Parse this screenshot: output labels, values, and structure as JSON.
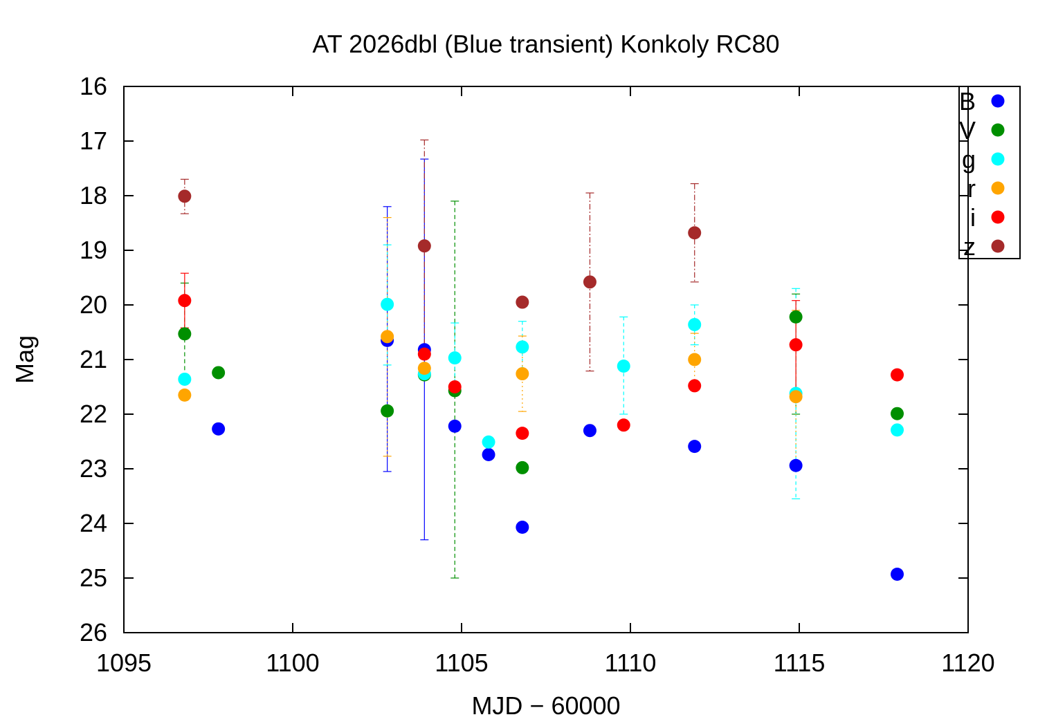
{
  "chart_data": {
    "type": "scatter",
    "title": "AT 2026dbl (Blue transient) Konkoly RC80",
    "xlabel": "MJD − 60000",
    "ylabel": "Mag",
    "xlim": [
      1095,
      1120
    ],
    "ylim": [
      26,
      16
    ],
    "y_inverted": true,
    "grid": false,
    "legend_position": "top-right",
    "xticks": [
      1095,
      1100,
      1105,
      1110,
      1115,
      1120
    ],
    "yticks": [
      16,
      17,
      18,
      19,
      20,
      21,
      22,
      23,
      24,
      25,
      26
    ],
    "series": [
      {
        "name": "B",
        "color": "#0000ff",
        "points": [
          {
            "x": 1097.8,
            "y": 22.27
          },
          {
            "x": 1102.8,
            "y": 20.65,
            "ylow": 18.2,
            "yhigh": 23.05
          },
          {
            "x": 1103.9,
            "y": 20.82,
            "ylow": 17.33,
            "yhigh": 24.3
          },
          {
            "x": 1104.8,
            "y": 22.22
          },
          {
            "x": 1105.8,
            "y": 22.74
          },
          {
            "x": 1106.8,
            "y": 24.07
          },
          {
            "x": 1108.8,
            "y": 22.3
          },
          {
            "x": 1111.9,
            "y": 22.59
          },
          {
            "x": 1114.9,
            "y": 22.94
          },
          {
            "x": 1117.9,
            "y": 24.93
          }
        ]
      },
      {
        "name": "V",
        "color": "#008f00",
        "points": [
          {
            "x": 1096.8,
            "y": 20.53,
            "ylow": 19.6,
            "yhigh": 21.4
          },
          {
            "x": 1097.8,
            "y": 21.24
          },
          {
            "x": 1102.8,
            "y": 21.94
          },
          {
            "x": 1103.9,
            "y": 21.28
          },
          {
            "x": 1104.8,
            "y": 21.57,
            "ylow": 18.1,
            "yhigh": 25.0
          },
          {
            "x": 1106.8,
            "y": 22.98
          },
          {
            "x": 1114.9,
            "y": 20.22,
            "ylow": 19.8,
            "yhigh": 22.0
          },
          {
            "x": 1117.9,
            "y": 21.99
          }
        ]
      },
      {
        "name": "g",
        "color": "#00ffff",
        "points": [
          {
            "x": 1096.8,
            "y": 21.36
          },
          {
            "x": 1102.8,
            "y": 19.99,
            "ylow": 18.9,
            "yhigh": 21.1
          },
          {
            "x": 1103.9,
            "y": 21.26
          },
          {
            "x": 1104.8,
            "y": 20.97,
            "ylow": 20.33,
            "yhigh": 21.6
          },
          {
            "x": 1105.8,
            "y": 22.51
          },
          {
            "x": 1106.8,
            "y": 20.77,
            "ylow": 20.3,
            "yhigh": 21.25
          },
          {
            "x": 1109.8,
            "y": 21.12,
            "ylow": 20.22,
            "yhigh": 22.0
          },
          {
            "x": 1111.9,
            "y": 20.36,
            "ylow": 20.0,
            "yhigh": 20.73
          },
          {
            "x": 1114.9,
            "y": 21.62,
            "ylow": 19.7,
            "yhigh": 23.55
          },
          {
            "x": 1117.9,
            "y": 22.29
          }
        ]
      },
      {
        "name": "r",
        "color": "#ffa500",
        "points": [
          {
            "x": 1096.8,
            "y": 21.65
          },
          {
            "x": 1102.8,
            "y": 20.58,
            "ylow": 18.4,
            "yhigh": 22.77
          },
          {
            "x": 1103.9,
            "y": 21.16
          },
          {
            "x": 1106.8,
            "y": 21.26,
            "ylow": 20.57,
            "yhigh": 21.95
          },
          {
            "x": 1111.9,
            "y": 21.0,
            "ylow": 20.52,
            "yhigh": 21.48
          },
          {
            "x": 1114.9,
            "y": 21.68,
            "ylow": 20.1,
            "yhigh": 23.0
          }
        ]
      },
      {
        "name": "i",
        "color": "#ff0000",
        "points": [
          {
            "x": 1096.8,
            "y": 19.92,
            "ylow": 19.42,
            "yhigh": 20.42
          },
          {
            "x": 1103.9,
            "y": 20.9
          },
          {
            "x": 1104.8,
            "y": 21.5
          },
          {
            "x": 1106.8,
            "y": 22.35
          },
          {
            "x": 1109.8,
            "y": 22.2
          },
          {
            "x": 1111.9,
            "y": 21.48
          },
          {
            "x": 1114.9,
            "y": 20.73,
            "ylow": 19.92,
            "yhigh": 21.55
          },
          {
            "x": 1117.9,
            "y": 21.28
          }
        ]
      },
      {
        "name": "z",
        "color": "#a52a2a",
        "points": [
          {
            "x": 1096.8,
            "y": 18.01,
            "ylow": 17.7,
            "yhigh": 18.33
          },
          {
            "x": 1103.9,
            "y": 18.92,
            "ylow": 16.98,
            "yhigh": 20.85
          },
          {
            "x": 1106.8,
            "y": 19.95
          },
          {
            "x": 1108.8,
            "y": 19.58,
            "ylow": 17.95,
            "yhigh": 21.21
          },
          {
            "x": 1111.9,
            "y": 18.68,
            "ylow": 17.78,
            "yhigh": 19.58
          }
        ]
      }
    ]
  }
}
